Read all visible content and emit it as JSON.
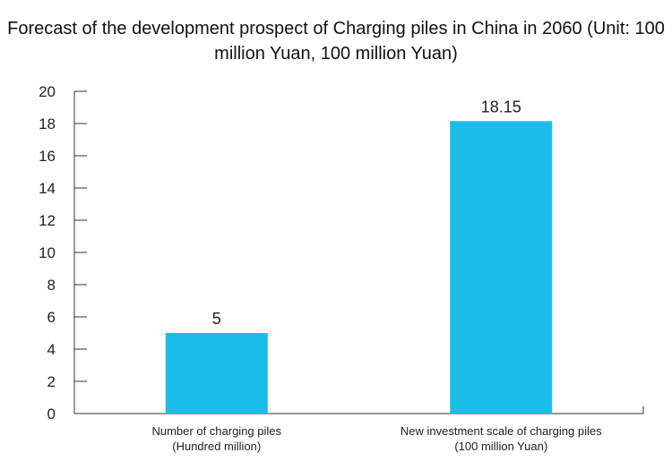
{
  "chart_data": {
    "type": "bar",
    "title": "Forecast of the development prospect of Charging piles in China in 2060 (Unit: 100 million Yuan, 100 million Yuan)",
    "categories": [
      [
        "Number of charging piles",
        "(Hundred million)"
      ],
      [
        "New investment scale of charging piles",
        "(100 million Yuan)"
      ]
    ],
    "values": [
      5,
      18.15
    ],
    "data_labels": [
      "5",
      "18.15"
    ],
    "ylim": [
      0,
      20
    ],
    "yticks": [
      0,
      2,
      4,
      6,
      8,
      10,
      12,
      14,
      16,
      18,
      20
    ],
    "colors": {
      "bar": "#1ABDEA",
      "axis": "#333333"
    },
    "grid": false,
    "legend": "none"
  }
}
